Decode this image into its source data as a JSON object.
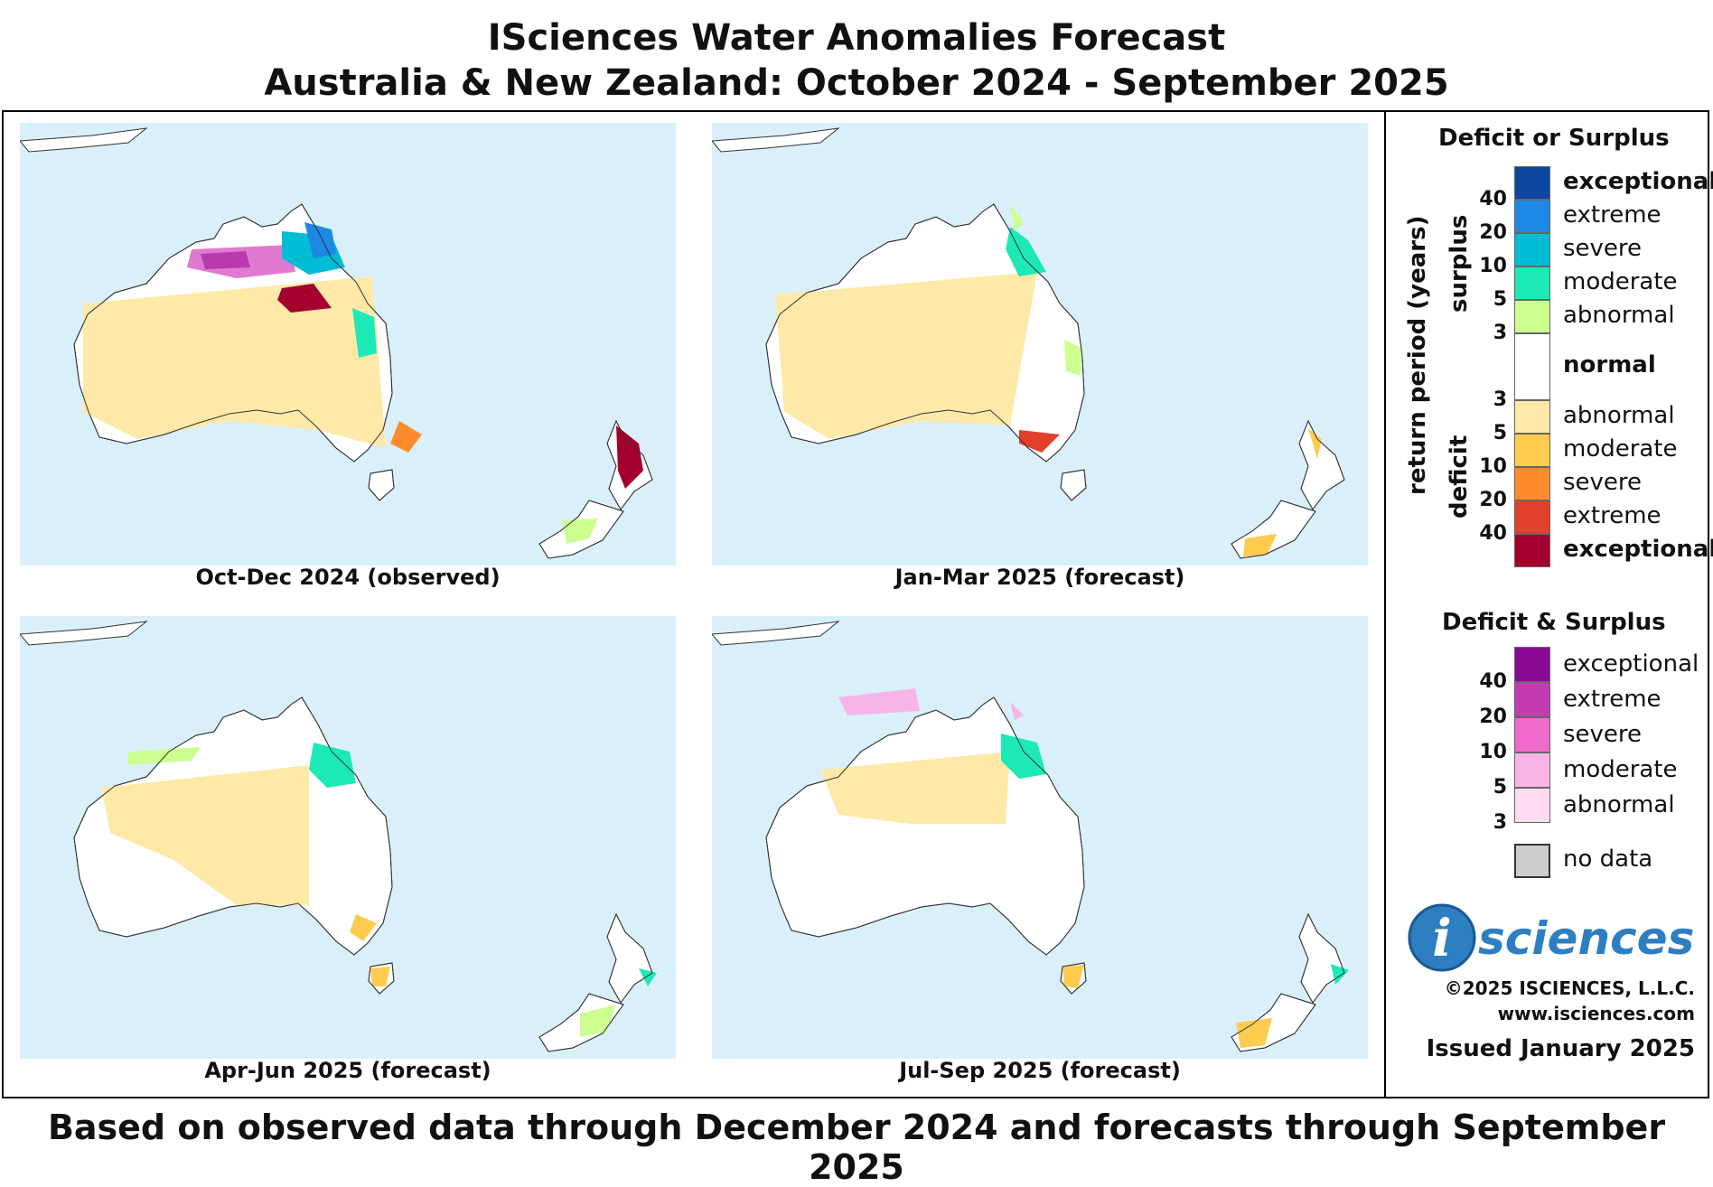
{
  "title_line1": "ISciences Water Anomalies Forecast",
  "title_line2": "Australia & New Zealand: October 2024 - September 2025",
  "footer": "Based on observed data through December 2024 and forecasts through September 2025",
  "panels": [
    {
      "caption": "Oct-Dec 2024 (observed)"
    },
    {
      "caption": "Jan-Mar 2025 (forecast)"
    },
    {
      "caption": "Apr-Jun 2025 (forecast)"
    },
    {
      "caption": "Jul-Sep 2025 (forecast)"
    }
  ],
  "legend": {
    "heading1": "Deficit or Surplus",
    "axis_label": "return period (years)",
    "surplus_label": "surplus",
    "deficit_label": "deficit",
    "surplus": [
      {
        "label": "exceptional",
        "color": "#0d47a1",
        "bold": true
      },
      {
        "label": "extreme",
        "color": "#1e88e5"
      },
      {
        "label": "severe",
        "color": "#00bcd4"
      },
      {
        "label": "moderate",
        "color": "#1de9b6"
      },
      {
        "label": "abnormal",
        "color": "#ccff90"
      }
    ],
    "normal": {
      "label": "normal",
      "color": "#ffffff"
    },
    "deficit": [
      {
        "label": "abnormal",
        "color": "#ffe9a8"
      },
      {
        "label": "moderate",
        "color": "#ffcc50"
      },
      {
        "label": "severe",
        "color": "#ff8c2a"
      },
      {
        "label": "extreme",
        "color": "#e2402a"
      },
      {
        "label": "exceptional",
        "color": "#a3002e",
        "bold": true
      }
    ],
    "surplus_ticks": [
      "40",
      "20",
      "10",
      "5",
      "3"
    ],
    "deficit_ticks": [
      "3",
      "5",
      "10",
      "20",
      "40"
    ],
    "heading2": "Deficit & Surplus",
    "both": [
      {
        "label": "exceptional",
        "color": "#8a0a96"
      },
      {
        "label": "extreme",
        "color": "#c23bb0"
      },
      {
        "label": "severe",
        "color": "#f06acc"
      },
      {
        "label": "moderate",
        "color": "#f8b4e6"
      },
      {
        "label": "abnormal",
        "color": "#fddcf0"
      }
    ],
    "both_ticks": [
      "40",
      "20",
      "10",
      "5",
      "3"
    ],
    "nodata": {
      "label": "no data",
      "color": "#cccccc"
    }
  },
  "logo_text": "sciences",
  "logo_i": "i",
  "copyright": "©2025 ISCIENCES, L.L.C.",
  "website": "www.isciences.com",
  "issued": "Issued January 2025"
}
